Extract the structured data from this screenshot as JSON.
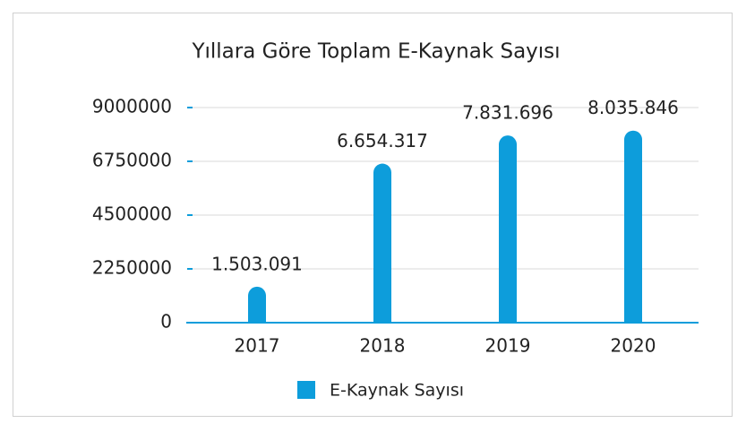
{
  "chart_data": {
    "type": "bar",
    "title": "Yıllara Göre Toplam E-Kaynak Sayısı",
    "categories": [
      "2017",
      "2018",
      "2019",
      "2020"
    ],
    "series": [
      {
        "name": "E-Kaynak Sayısı",
        "color": "#0d9ddb",
        "values": [
          1503091,
          6654317,
          7831696,
          8035846
        ],
        "value_labels": [
          "1.503.091",
          "6.654.317",
          "7.831.696",
          "8.035.846"
        ]
      }
    ],
    "ylim": [
      0,
      9000000
    ],
    "yticks": [
      0,
      2250000,
      4500000,
      6750000,
      9000000
    ],
    "grid": true
  }
}
